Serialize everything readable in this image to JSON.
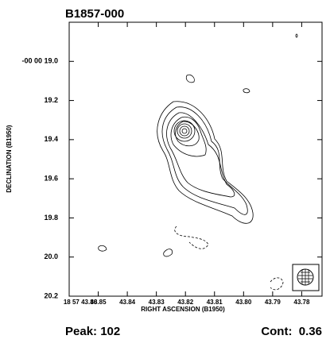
{
  "chart_data": {
    "type": "contour",
    "title": "B1857-000",
    "xlabel": "RIGHT ASCENSION (B1950)",
    "ylabel": "DECLINATION (B1950)",
    "xlim": [
      43.86,
      43.773
    ],
    "ylim": [
      20.2,
      18.8
    ],
    "xticks": [
      {
        "value": 43.86,
        "label": "18 57 43.86"
      },
      43.85,
      43.84,
      43.83,
      43.82,
      43.81,
      {
        "value": 43.8,
        "label": "43.80"
      },
      43.79,
      43.78
    ],
    "yticks": [
      {
        "value": 19,
        "label": "-00 00 19.0"
      },
      19.2,
      19.4,
      19.6,
      19.8,
      {
        "value": 20,
        "label": "20.0"
      },
      20.2
    ],
    "annotations": [
      "Peak: 102",
      "Cont:  0.36"
    ]
  }
}
